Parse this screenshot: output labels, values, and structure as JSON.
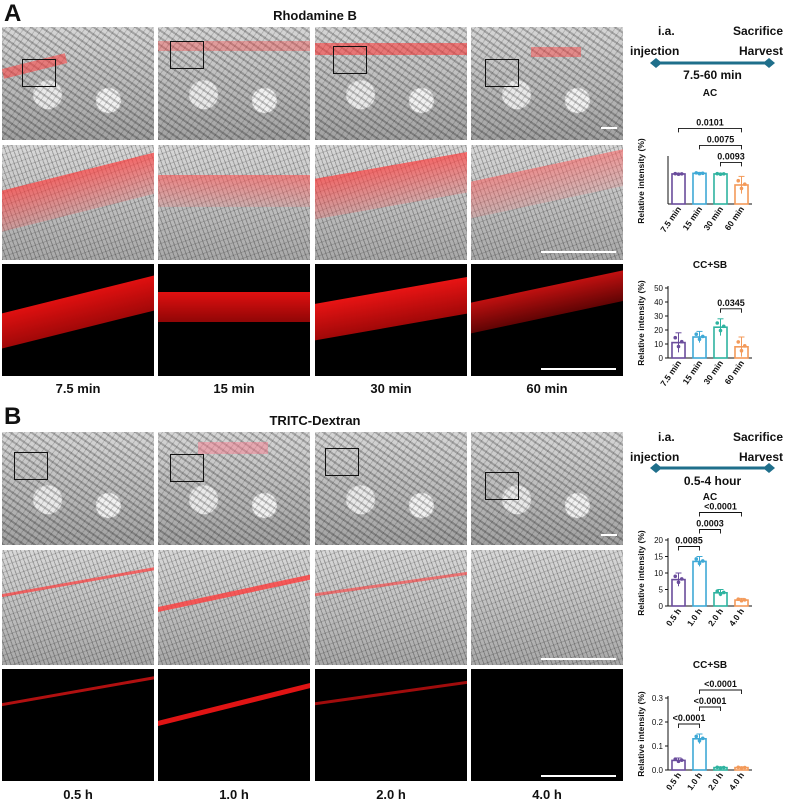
{
  "panel_a": {
    "letter": "A",
    "title": "Rhodamine B",
    "time_labels": [
      "7.5 min",
      "15 min",
      "30 min",
      "60 min"
    ],
    "timeline": {
      "left_top": "i.a.",
      "left_bottom": "injection",
      "right_top": "Sacrifice",
      "right_bottom": "Harvest",
      "range": "7.5-60 min"
    }
  },
  "panel_b": {
    "letter": "B",
    "title": "TRITC-Dextran",
    "time_labels": [
      "0.5 h",
      "1.0 h",
      "2.0 h",
      "4.0 h"
    ],
    "timeline": {
      "left_top": "i.a.",
      "left_bottom": "injection",
      "right_top": "Sacrifice",
      "right_bottom": "Harvest",
      "range": "0.5-4 hour"
    }
  },
  "colors": {
    "accent_teal": "#1f6f8b",
    "fluor_red": "#ff2020",
    "series": [
      "#6a4c9c",
      "#3fa9d6",
      "#2fb3a0",
      "#f39a5a"
    ]
  },
  "chart_data": [
    {
      "type": "bar",
      "title": "AC",
      "ylabel": "Relative intensity (%)",
      "categories": [
        "7.5 min",
        "15 min",
        "30 min",
        "60 min"
      ],
      "values": [
        98,
        100,
        98,
        62
      ],
      "errors": [
        2,
        3,
        2,
        28
      ],
      "ylim": [
        0,
        150
      ],
      "yticks": [],
      "pvalues": [
        {
          "from": 0,
          "to": 3,
          "label": "0.0101"
        },
        {
          "from": 1,
          "to": 3,
          "label": "0.0075"
        },
        {
          "from": 2,
          "to": 3,
          "label": "0.0093"
        }
      ]
    },
    {
      "type": "bar",
      "title": "CC+SB",
      "ylabel": "Relative intensity (%)",
      "categories": [
        "7.5 min",
        "15 min",
        "30 min",
        "60 min"
      ],
      "values": [
        11,
        15,
        22,
        8
      ],
      "errors": [
        7,
        4,
        6,
        7
      ],
      "ylim": [
        0,
        50
      ],
      "yticks": [
        0,
        10,
        20,
        30,
        40,
        50
      ],
      "pvalues": [
        {
          "from": 2,
          "to": 3,
          "label": "0.0345"
        }
      ]
    },
    {
      "type": "bar",
      "title": "AC",
      "ylabel": "Relative intensity (%)",
      "categories": [
        "0.5 h",
        "1.0 h",
        "2.0 h",
        "4.0 h"
      ],
      "values": [
        8,
        13.5,
        4,
        1.8
      ],
      "errors": [
        2,
        1.5,
        1,
        0.5
      ],
      "ylim": [
        0,
        20
      ],
      "yticks": [
        0,
        5,
        10,
        15,
        20
      ],
      "pvalues": [
        {
          "from": 0,
          "to": 1,
          "label": "0.0085"
        },
        {
          "from": 1,
          "to": 2,
          "label": "0.0003"
        },
        {
          "from": 1,
          "to": 3,
          "label": "<0.0001"
        }
      ]
    },
    {
      "type": "bar",
      "title": "CC+SB",
      "ylabel": "Relative intensity (%)",
      "categories": [
        "0.5 h",
        "1.0 h",
        "2.0 h",
        "4.0 h"
      ],
      "values": [
        0.04,
        0.13,
        0.01,
        0.01
      ],
      "errors": [
        0.01,
        0.02,
        0.003,
        0.003
      ],
      "ylim": [
        0,
        0.3
      ],
      "yticks": [
        0.0,
        0.1,
        0.2,
        0.3
      ],
      "pvalues": [
        {
          "from": 0,
          "to": 1,
          "label": "<0.0001"
        },
        {
          "from": 1,
          "to": 2,
          "label": "<0.0001"
        },
        {
          "from": 1,
          "to": 3,
          "label": "<0.0001"
        }
      ]
    }
  ]
}
